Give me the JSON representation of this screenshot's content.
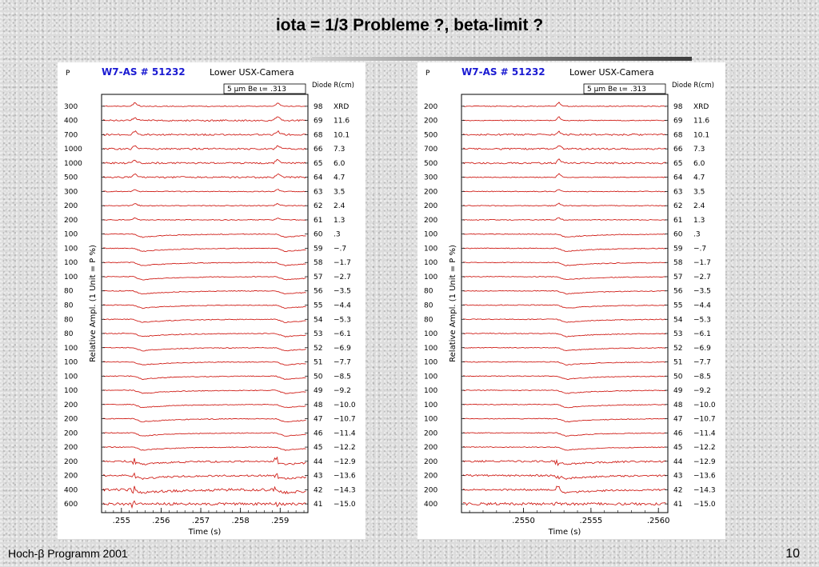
{
  "slide": {
    "title": "iota = 1/3 Probleme ?, beta-limit ?",
    "footer_left": "Hoch-β Programm 2001",
    "page_number": "10"
  },
  "colors": {
    "trace": "#d0201a",
    "header_blue": "#1a1ad2"
  },
  "chart_data": [
    {
      "type": "line",
      "header": {
        "p_label": "P",
        "shot": "W7-AS # 51232",
        "camera": "Lower USX-Camera",
        "filter": "5 μm Be ι= .313",
        "diode_label": "Diode R(cm)"
      },
      "ylabel": "Relative Ampl. (1 Unit = P %)",
      "xlabel": "Time (s)",
      "xlim": [
        0.2545,
        0.2597
      ],
      "xticks": [
        ".255",
        ".256",
        ".257",
        ".258",
        ".259"
      ],
      "xtick_values": [
        0.255,
        0.256,
        0.257,
        0.258,
        0.259
      ],
      "event_times": [
        0.2553,
        0.2589
      ],
      "channels": [
        {
          "p": "300",
          "diode": "98",
          "r": "XRD"
        },
        {
          "p": "400",
          "diode": "69",
          "r": "11.6"
        },
        {
          "p": "700",
          "diode": "68",
          "r": "10.1"
        },
        {
          "p": "1000",
          "diode": "66",
          "r": "7.3"
        },
        {
          "p": "1000",
          "diode": "65",
          "r": "6.0"
        },
        {
          "p": "500",
          "diode": "64",
          "r": "4.7"
        },
        {
          "p": "300",
          "diode": "63",
          "r": "3.5"
        },
        {
          "p": "200",
          "diode": "62",
          "r": "2.4"
        },
        {
          "p": "200",
          "diode": "61",
          "r": "1.3"
        },
        {
          "p": "100",
          "diode": "60",
          "r": ".3"
        },
        {
          "p": "100",
          "diode": "59",
          "r": "−.7"
        },
        {
          "p": "100",
          "diode": "58",
          "r": "−1.7"
        },
        {
          "p": "100",
          "diode": "57",
          "r": "−2.7"
        },
        {
          "p": "80",
          "diode": "56",
          "r": "−3.5"
        },
        {
          "p": "80",
          "diode": "55",
          "r": "−4.4"
        },
        {
          "p": "80",
          "diode": "54",
          "r": "−5.3"
        },
        {
          "p": "80",
          "diode": "53",
          "r": "−6.1"
        },
        {
          "p": "100",
          "diode": "52",
          "r": "−6.9"
        },
        {
          "p": "100",
          "diode": "51",
          "r": "−7.7"
        },
        {
          "p": "100",
          "diode": "50",
          "r": "−8.5"
        },
        {
          "p": "100",
          "diode": "49",
          "r": "−9.2"
        },
        {
          "p": "200",
          "diode": "48",
          "r": "−10.0"
        },
        {
          "p": "200",
          "diode": "47",
          "r": "−10.7"
        },
        {
          "p": "200",
          "diode": "46",
          "r": "−11.4"
        },
        {
          "p": "200",
          "diode": "45",
          "r": "−12.2"
        },
        {
          "p": "200",
          "diode": "44",
          "r": "−12.9"
        },
        {
          "p": "200",
          "diode": "43",
          "r": "−13.6"
        },
        {
          "p": "400",
          "diode": "42",
          "r": "−14.3"
        },
        {
          "p": "600",
          "diode": "41",
          "r": "−15.0"
        }
      ]
    },
    {
      "type": "line",
      "header": {
        "p_label": "P",
        "shot": "W7-AS # 51232",
        "camera": "Lower USX-Camera",
        "filter": "5 μm Be ι= .313",
        "diode_label": "Diode R(cm)"
      },
      "ylabel": "Relative Ampl. (1 Unit = P %)",
      "xlabel": "Time (s)",
      "xlim": [
        0.25454,
        0.25607
      ],
      "xticks": [
        ".2550",
        ".2555",
        ".2560"
      ],
      "xtick_values": [
        0.255,
        0.2555,
        0.256
      ],
      "event_times": [
        0.25525
      ],
      "channels": [
        {
          "p": "200",
          "diode": "98",
          "r": "XRD"
        },
        {
          "p": "200",
          "diode": "69",
          "r": "11.6"
        },
        {
          "p": "500",
          "diode": "68",
          "r": "10.1"
        },
        {
          "p": "700",
          "diode": "66",
          "r": "7.3"
        },
        {
          "p": "500",
          "diode": "65",
          "r": "6.0"
        },
        {
          "p": "300",
          "diode": "64",
          "r": "4.7"
        },
        {
          "p": "200",
          "diode": "63",
          "r": "3.5"
        },
        {
          "p": "200",
          "diode": "62",
          "r": "2.4"
        },
        {
          "p": "200",
          "diode": "61",
          "r": "1.3"
        },
        {
          "p": "100",
          "diode": "60",
          "r": ".3"
        },
        {
          "p": "100",
          "diode": "59",
          "r": "−.7"
        },
        {
          "p": "100",
          "diode": "58",
          "r": "−1.7"
        },
        {
          "p": "100",
          "diode": "57",
          "r": "−2.7"
        },
        {
          "p": "80",
          "diode": "56",
          "r": "−3.5"
        },
        {
          "p": "80",
          "diode": "55",
          "r": "−4.4"
        },
        {
          "p": "80",
          "diode": "54",
          "r": "−5.3"
        },
        {
          "p": "100",
          "diode": "53",
          "r": "−6.1"
        },
        {
          "p": "100",
          "diode": "52",
          "r": "−6.9"
        },
        {
          "p": "100",
          "diode": "51",
          "r": "−7.7"
        },
        {
          "p": "100",
          "diode": "50",
          "r": "−8.5"
        },
        {
          "p": "100",
          "diode": "49",
          "r": "−9.2"
        },
        {
          "p": "100",
          "diode": "48",
          "r": "−10.0"
        },
        {
          "p": "100",
          "diode": "47",
          "r": "−10.7"
        },
        {
          "p": "200",
          "diode": "46",
          "r": "−11.4"
        },
        {
          "p": "200",
          "diode": "45",
          "r": "−12.2"
        },
        {
          "p": "200",
          "diode": "44",
          "r": "−12.9"
        },
        {
          "p": "200",
          "diode": "43",
          "r": "−13.6"
        },
        {
          "p": "200",
          "diode": "42",
          "r": "−14.3"
        },
        {
          "p": "400",
          "diode": "41",
          "r": "−15.0"
        }
      ]
    }
  ]
}
